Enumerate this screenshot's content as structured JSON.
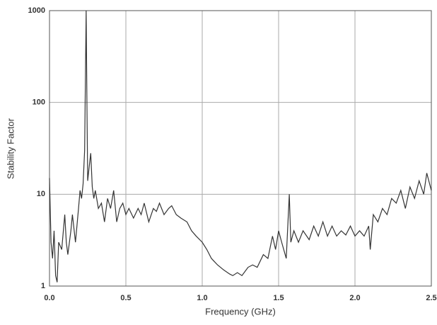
{
  "chart_data": {
    "type": "line",
    "x_label": "Frequency (GHz)",
    "y_label": "Stability Factor",
    "x": [
      0.0,
      0.01,
      0.02,
      0.03,
      0.04,
      0.05,
      0.06,
      0.08,
      0.1,
      0.11,
      0.12,
      0.14,
      0.15,
      0.17,
      0.19,
      0.2,
      0.21,
      0.22,
      0.23,
      0.24,
      0.245,
      0.25,
      0.26,
      0.27,
      0.28,
      0.29,
      0.3,
      0.32,
      0.34,
      0.36,
      0.38,
      0.4,
      0.42,
      0.44,
      0.46,
      0.48,
      0.5,
      0.52,
      0.55,
      0.58,
      0.6,
      0.62,
      0.65,
      0.68,
      0.7,
      0.72,
      0.75,
      0.78,
      0.8,
      0.83,
      0.86,
      0.9,
      0.93,
      0.96,
      1.0,
      1.03,
      1.06,
      1.1,
      1.14,
      1.18,
      1.2,
      1.23,
      1.26,
      1.3,
      1.33,
      1.36,
      1.4,
      1.43,
      1.46,
      1.48,
      1.5,
      1.52,
      1.55,
      1.57,
      1.58,
      1.6,
      1.63,
      1.66,
      1.7,
      1.73,
      1.76,
      1.79,
      1.82,
      1.85,
      1.88,
      1.91,
      1.94,
      1.97,
      2.0,
      2.03,
      2.06,
      2.09,
      2.1,
      2.12,
      2.15,
      2.18,
      2.21,
      2.24,
      2.27,
      2.3,
      2.33,
      2.36,
      2.39,
      2.42,
      2.45,
      2.47,
      2.5
    ],
    "values": [
      15,
      3,
      2,
      4,
      1.3,
      1.1,
      3,
      2.5,
      6,
      3,
      2.2,
      4,
      6,
      3,
      7,
      11,
      9,
      13,
      30,
      1000,
      100,
      14,
      20,
      28,
      12,
      9,
      11,
      7,
      8,
      5,
      9,
      7,
      11,
      5,
      7,
      8,
      6,
      7,
      5.5,
      7,
      6,
      8,
      5,
      7,
      6.5,
      8,
      6,
      7,
      7.5,
      6,
      5.5,
      5,
      4,
      3.5,
      3,
      2.5,
      2,
      1.7,
      1.5,
      1.35,
      1.3,
      1.4,
      1.3,
      1.6,
      1.7,
      1.6,
      2.2,
      2.0,
      3.5,
      2.5,
      4,
      3,
      2,
      10,
      3,
      4,
      3,
      4,
      3.2,
      4.5,
      3.5,
      5,
      3.5,
      4.5,
      3.5,
      4,
      3.6,
      4.5,
      3.5,
      4,
      3.5,
      4.5,
      2.5,
      6,
      5,
      7,
      6,
      9,
      8,
      11,
      7,
      12,
      9,
      14,
      10,
      17,
      11
    ],
    "color": "#333333",
    "xlim": [
      0,
      2.5
    ],
    "xticks": [
      {
        "value": 0,
        "label": "0.0"
      },
      0.5,
      {
        "value": 1,
        "label": "1.0"
      },
      1.5,
      {
        "value": 2,
        "label": "2.0"
      },
      2.5
    ],
    "ylim": [
      1,
      1000
    ],
    "yticks": [
      1,
      10,
      100,
      1000
    ],
    "log_y": true,
    "grid": true
  }
}
